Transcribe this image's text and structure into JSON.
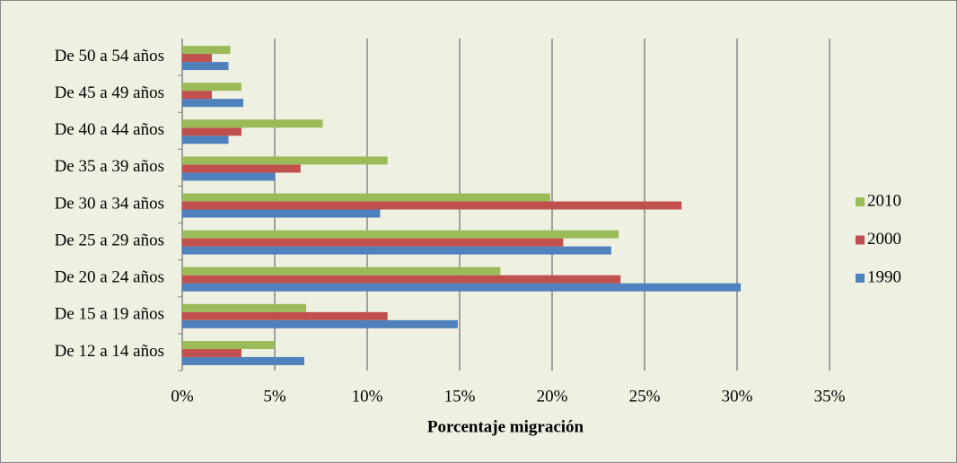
{
  "chart_data": {
    "type": "hbar",
    "xlabel": "Porcentaje migración",
    "categories": [
      "De 12 a 14 años",
      "De 15 a 19 años",
      "De 20 a 24 años",
      "De 25 a 29 años",
      "De 30 a 34 años",
      "De 35 a 39 años",
      "De 40 a 44 años",
      "De 45 a 49 años",
      "De 50 a 54 años"
    ],
    "series": [
      {
        "name": "1990",
        "color": "#4f81bd",
        "values": [
          6.6,
          14.9,
          30.2,
          23.2,
          10.7,
          5.0,
          2.5,
          3.3,
          2.5
        ]
      },
      {
        "name": "2000",
        "color": "#c0504d",
        "values": [
          3.2,
          11.1,
          23.7,
          20.6,
          27.0,
          6.4,
          3.2,
          1.6,
          1.6
        ]
      },
      {
        "name": "2010",
        "color": "#9bbb59",
        "values": [
          5.0,
          6.7,
          17.2,
          23.6,
          19.9,
          11.1,
          7.6,
          3.2,
          2.6
        ]
      }
    ],
    "xlim": [
      0,
      35
    ],
    "xticks": [
      {
        "value": 0,
        "label": "0%"
      },
      {
        "value": 5,
        "label": "5%"
      },
      {
        "value": 10,
        "label": "10%"
      },
      {
        "value": 15,
        "label": "15%"
      },
      {
        "value": 20,
        "label": "20%"
      },
      {
        "value": 25,
        "label": "25%"
      },
      {
        "value": 30,
        "label": "30%"
      },
      {
        "value": 35,
        "label": "35%"
      }
    ],
    "grid": true,
    "legend": "right"
  }
}
